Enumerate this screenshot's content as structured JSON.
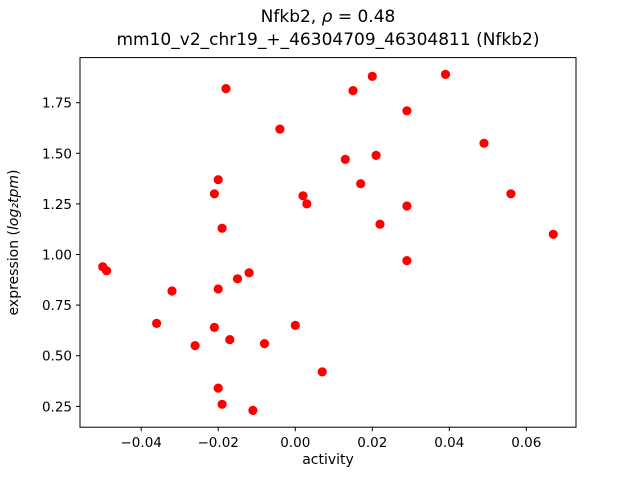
{
  "chart_data": {
    "type": "scatter",
    "title": {
      "prefix": "Nfkb2, ",
      "math": "ρ",
      "suffix": " = 0.48"
    },
    "subtitle": "mm10_v2_chr19_+_46304709_46304811 (Nfkb2)",
    "xlabel": "activity",
    "ylabel": {
      "prefix": "expression (",
      "math": "log₂tpm",
      "suffix": ")"
    },
    "correlation": 0.48,
    "grid": false,
    "legend": null,
    "xlim": [
      -0.0559,
      0.0729
    ],
    "ylim": [
      0.147,
      1.973
    ],
    "xticks": {
      "values": [
        -0.04,
        -0.02,
        0.0,
        0.02,
        0.04,
        0.06
      ],
      "labels": [
        "−0.04",
        "−0.02",
        "0.00",
        "0.02",
        "0.04",
        "0.06"
      ]
    },
    "yticks": {
      "values": [
        0.25,
        0.5,
        0.75,
        1.0,
        1.25,
        1.5,
        1.75
      ],
      "labels": [
        "0.25",
        "0.50",
        "0.75",
        "1.00",
        "1.25",
        "1.50",
        "1.75"
      ]
    },
    "marker": {
      "shape": "circle",
      "color": "#ff0000",
      "radius": 4.6
    },
    "points": [
      [
        -0.05,
        0.94
      ],
      [
        -0.049,
        0.92
      ],
      [
        -0.036,
        0.66
      ],
      [
        -0.032,
        0.82
      ],
      [
        -0.026,
        0.55
      ],
      [
        -0.021,
        1.3
      ],
      [
        -0.02,
        1.37
      ],
      [
        -0.02,
        0.83
      ],
      [
        -0.021,
        0.64
      ],
      [
        -0.019,
        1.13
      ],
      [
        -0.02,
        0.34
      ],
      [
        -0.019,
        0.26
      ],
      [
        -0.018,
        1.82
      ],
      [
        -0.017,
        0.58
      ],
      [
        -0.015,
        0.88
      ],
      [
        -0.012,
        0.91
      ],
      [
        -0.011,
        0.23
      ],
      [
        -0.008,
        0.56
      ],
      [
        -0.004,
        1.62
      ],
      [
        0.0,
        0.65
      ],
      [
        0.002,
        1.29
      ],
      [
        0.003,
        1.25
      ],
      [
        0.007,
        0.42
      ],
      [
        0.013,
        1.47
      ],
      [
        0.015,
        1.81
      ],
      [
        0.017,
        1.35
      ],
      [
        0.02,
        1.88
      ],
      [
        0.021,
        1.49
      ],
      [
        0.022,
        1.15
      ],
      [
        0.029,
        1.71
      ],
      [
        0.029,
        1.24
      ],
      [
        0.029,
        0.97
      ],
      [
        0.039,
        1.89
      ],
      [
        0.049,
        1.55
      ],
      [
        0.056,
        1.3
      ],
      [
        0.067,
        1.1
      ]
    ]
  }
}
